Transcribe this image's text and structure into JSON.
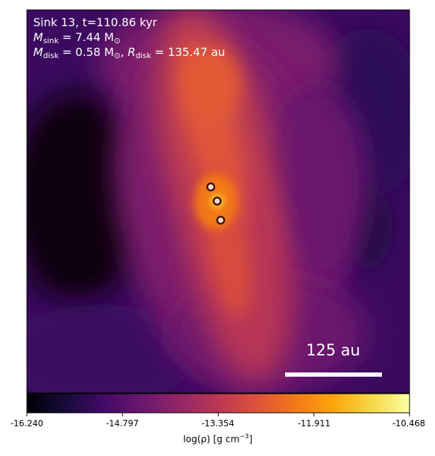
{
  "annotation": {
    "line1": "Sink 13, t=110.86 kyr",
    "msink_symbol": "M",
    "msink_sub": "sink",
    "msink_value": " = 7.44 M",
    "msink_unit_sub": "⊙",
    "mdisk_symbol": "M",
    "mdisk_sub": "disk",
    "mdisk_value": " = 0.58 M",
    "mdisk_unit_sub": "⊙",
    "rdisk_sep": ", ",
    "rdisk_symbol": "R",
    "rdisk_sub": "disk",
    "rdisk_value": " = 135.47 au"
  },
  "scale_bar": {
    "label": "125 au"
  },
  "colorbar": {
    "colormap": "inferno",
    "ticks": [
      "-16.240",
      "-14.797",
      "-13.354",
      "-11.911",
      "-10.468"
    ],
    "label_main": "log(ρ) [g cm",
    "label_exp": "−3",
    "label_end": "]"
  },
  "sinks": [
    {
      "name": "sink-upper"
    },
    {
      "name": "sink-central"
    },
    {
      "name": "sink-lower"
    }
  ],
  "colors": {
    "sink_marker_fill": "#ffd8c0",
    "sink_marker_edge": "#3a1010",
    "scale_bar": "#ffffff",
    "text_on_image": "#ffffff"
  }
}
